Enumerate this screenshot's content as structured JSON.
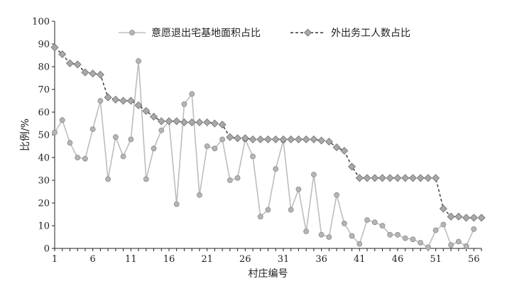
{
  "chart_data": {
    "type": "line",
    "xlabel": "村庄编号",
    "ylabel": "比例/%",
    "xlim": [
      1,
      57
    ],
    "ylim": [
      0,
      100
    ],
    "x_ticks": [
      1,
      6,
      11,
      16,
      21,
      26,
      31,
      36,
      41,
      46,
      51,
      56
    ],
    "y_ticks": [
      0,
      10,
      20,
      30,
      40,
      50,
      60,
      70,
      80,
      90,
      100
    ],
    "grid": false,
    "legend_position": "top",
    "x": [
      1,
      2,
      3,
      4,
      5,
      6,
      7,
      8,
      9,
      10,
      11,
      12,
      13,
      14,
      15,
      16,
      17,
      18,
      19,
      20,
      21,
      22,
      23,
      24,
      25,
      26,
      27,
      28,
      29,
      30,
      31,
      32,
      33,
      34,
      35,
      36,
      37,
      38,
      39,
      40,
      41,
      42,
      43,
      44,
      45,
      46,
      47,
      48,
      49,
      50,
      51,
      52,
      53,
      54,
      55,
      56,
      57
    ],
    "series": [
      {
        "name": "意愿退出宅基地面积占比",
        "style": "solid",
        "color": "#bdbdbd",
        "values": [
          51,
          56.5,
          46.5,
          40,
          39.5,
          52.5,
          65,
          30.5,
          49,
          40.5,
          48,
          82.5,
          30.5,
          44,
          52,
          56,
          19.5,
          63.5,
          68,
          23.5,
          45,
          44,
          48,
          30,
          31,
          48,
          40.5,
          14,
          17,
          35,
          47.5,
          17,
          26,
          7.5,
          32.5,
          6,
          5,
          23.5,
          11,
          5.5,
          2,
          12.5,
          11.5,
          10,
          6,
          6,
          4.5,
          4,
          2.5,
          0.5,
          8,
          10.5,
          1.5,
          3,
          1,
          8.5,
          null
        ]
      },
      {
        "name": "外出务工人数占比",
        "style": "dashed",
        "color": "#333333",
        "marker_color": "#a8a8a8",
        "values": [
          88.5,
          85.5,
          81.5,
          81,
          77.5,
          77,
          76.5,
          66.5,
          65.5,
          65,
          65,
          63,
          60.5,
          58,
          56,
          56,
          56,
          55.5,
          55.5,
          55.5,
          55.5,
          55,
          54.5,
          49,
          48.5,
          48.5,
          48,
          48,
          48,
          48,
          48,
          48,
          48,
          48,
          48,
          47.5,
          47,
          44.5,
          43,
          36,
          31,
          31,
          31,
          31,
          31,
          31,
          31,
          31,
          31,
          31,
          31,
          17.5,
          14,
          14,
          13.5,
          13.5,
          13.5
        ]
      }
    ]
  }
}
